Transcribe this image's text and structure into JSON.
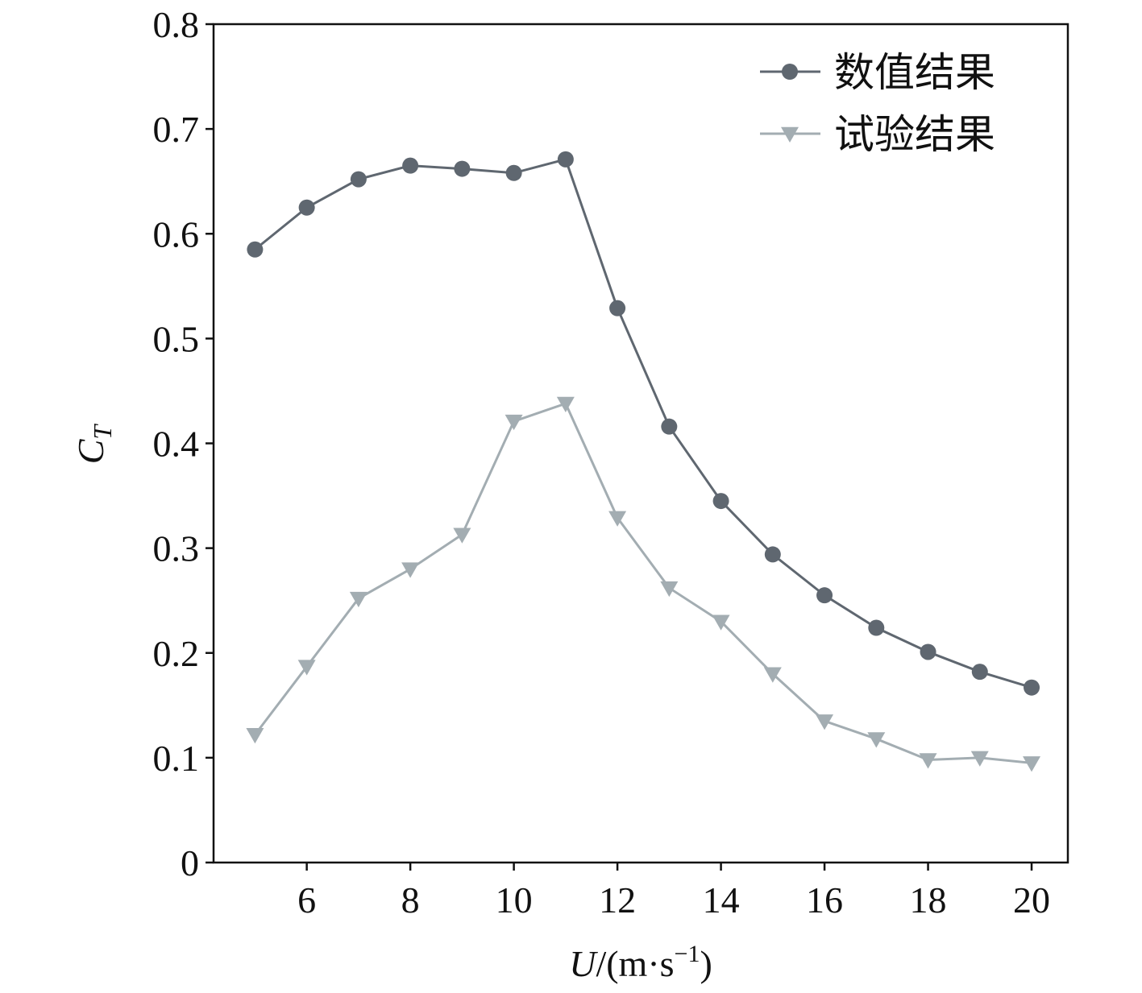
{
  "chart_data": {
    "type": "line",
    "xlabel": {
      "var": "U",
      "unit": "/(m·s",
      "sup": "−1",
      "close": ")"
    },
    "ylabel": {
      "var": "C",
      "sub": "T"
    },
    "xlim": [
      4.2,
      20.7
    ],
    "ylim": [
      0,
      0.8
    ],
    "xticks": [
      6,
      8,
      10,
      12,
      14,
      16,
      18,
      20
    ],
    "yticks": [
      0,
      0.1,
      0.2,
      0.3,
      0.4,
      0.5,
      0.6,
      0.7,
      0.8
    ],
    "ytick_labels": [
      "0",
      "0.1",
      "0.2",
      "0.3",
      "0.4",
      "0.5",
      "0.6",
      "0.7",
      "0.8"
    ],
    "grid": false,
    "legend_position": "top-right",
    "x": [
      5,
      6,
      7,
      8,
      9,
      10,
      11,
      12,
      13,
      14,
      15,
      16,
      17,
      18,
      19,
      20
    ],
    "series": [
      {
        "name": "数值结果",
        "marker": "circle",
        "color": "#5f6770",
        "values": [
          0.585,
          0.625,
          0.652,
          0.665,
          0.662,
          0.658,
          0.671,
          0.529,
          0.416,
          0.345,
          0.294,
          0.255,
          0.224,
          0.201,
          0.182,
          0.167
        ]
      },
      {
        "name": "试验结果",
        "marker": "triangle-down",
        "color": "#a3adb2",
        "values": [
          0.122,
          0.187,
          0.252,
          0.28,
          0.313,
          0.421,
          0.438,
          0.329,
          0.262,
          0.23,
          0.18,
          0.135,
          0.118,
          0.098,
          0.1,
          0.095
        ]
      }
    ]
  }
}
